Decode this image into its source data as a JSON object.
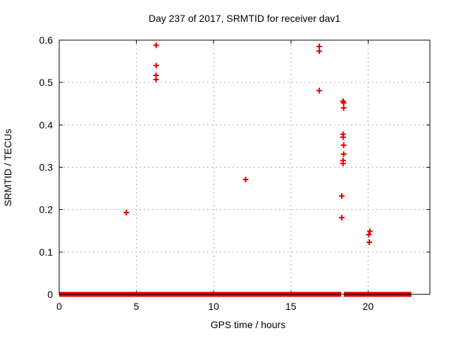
{
  "chart_data": {
    "type": "scatter",
    "title": "Day 237 of 2017, SRMTID for receiver dav1",
    "xlabel": "GPS time / hours",
    "ylabel": "SRMTID / TECUs",
    "xlim": [
      0,
      24
    ],
    "ylim": [
      0,
      0.6
    ],
    "xticks": [
      0,
      5,
      10,
      15,
      20
    ],
    "yticks": [
      0,
      0.1,
      0.2,
      0.3,
      0.4,
      0.5,
      0.6
    ],
    "grid": true,
    "legend": "none",
    "marker": "plus",
    "marker_color": "#e10000",
    "grid_color": "#b0b0b0",
    "border_color": "#000000",
    "series": [
      {
        "name": "SRMTID",
        "points": [
          [
            4.35,
            0.193
          ],
          [
            6.28,
            0.588
          ],
          [
            6.28,
            0.54
          ],
          [
            6.27,
            0.517
          ],
          [
            6.27,
            0.507
          ],
          [
            12.07,
            0.271
          ],
          [
            16.84,
            0.585
          ],
          [
            16.84,
            0.574
          ],
          [
            16.84,
            0.481
          ],
          [
            18.38,
            0.456
          ],
          [
            18.42,
            0.452
          ],
          [
            18.42,
            0.44
          ],
          [
            18.38,
            0.378
          ],
          [
            18.38,
            0.371
          ],
          [
            18.42,
            0.352
          ],
          [
            18.42,
            0.331
          ],
          [
            18.38,
            0.316
          ],
          [
            18.38,
            0.309
          ],
          [
            18.3,
            0.232
          ],
          [
            18.3,
            0.181
          ],
          [
            20.12,
            0.149
          ],
          [
            20.05,
            0.141
          ],
          [
            20.08,
            0.123
          ]
        ]
      }
    ],
    "zero_band_segments": [
      [
        0.0,
        18.25
      ],
      [
        18.43,
        22.8
      ]
    ],
    "zero_band_value": 0
  }
}
